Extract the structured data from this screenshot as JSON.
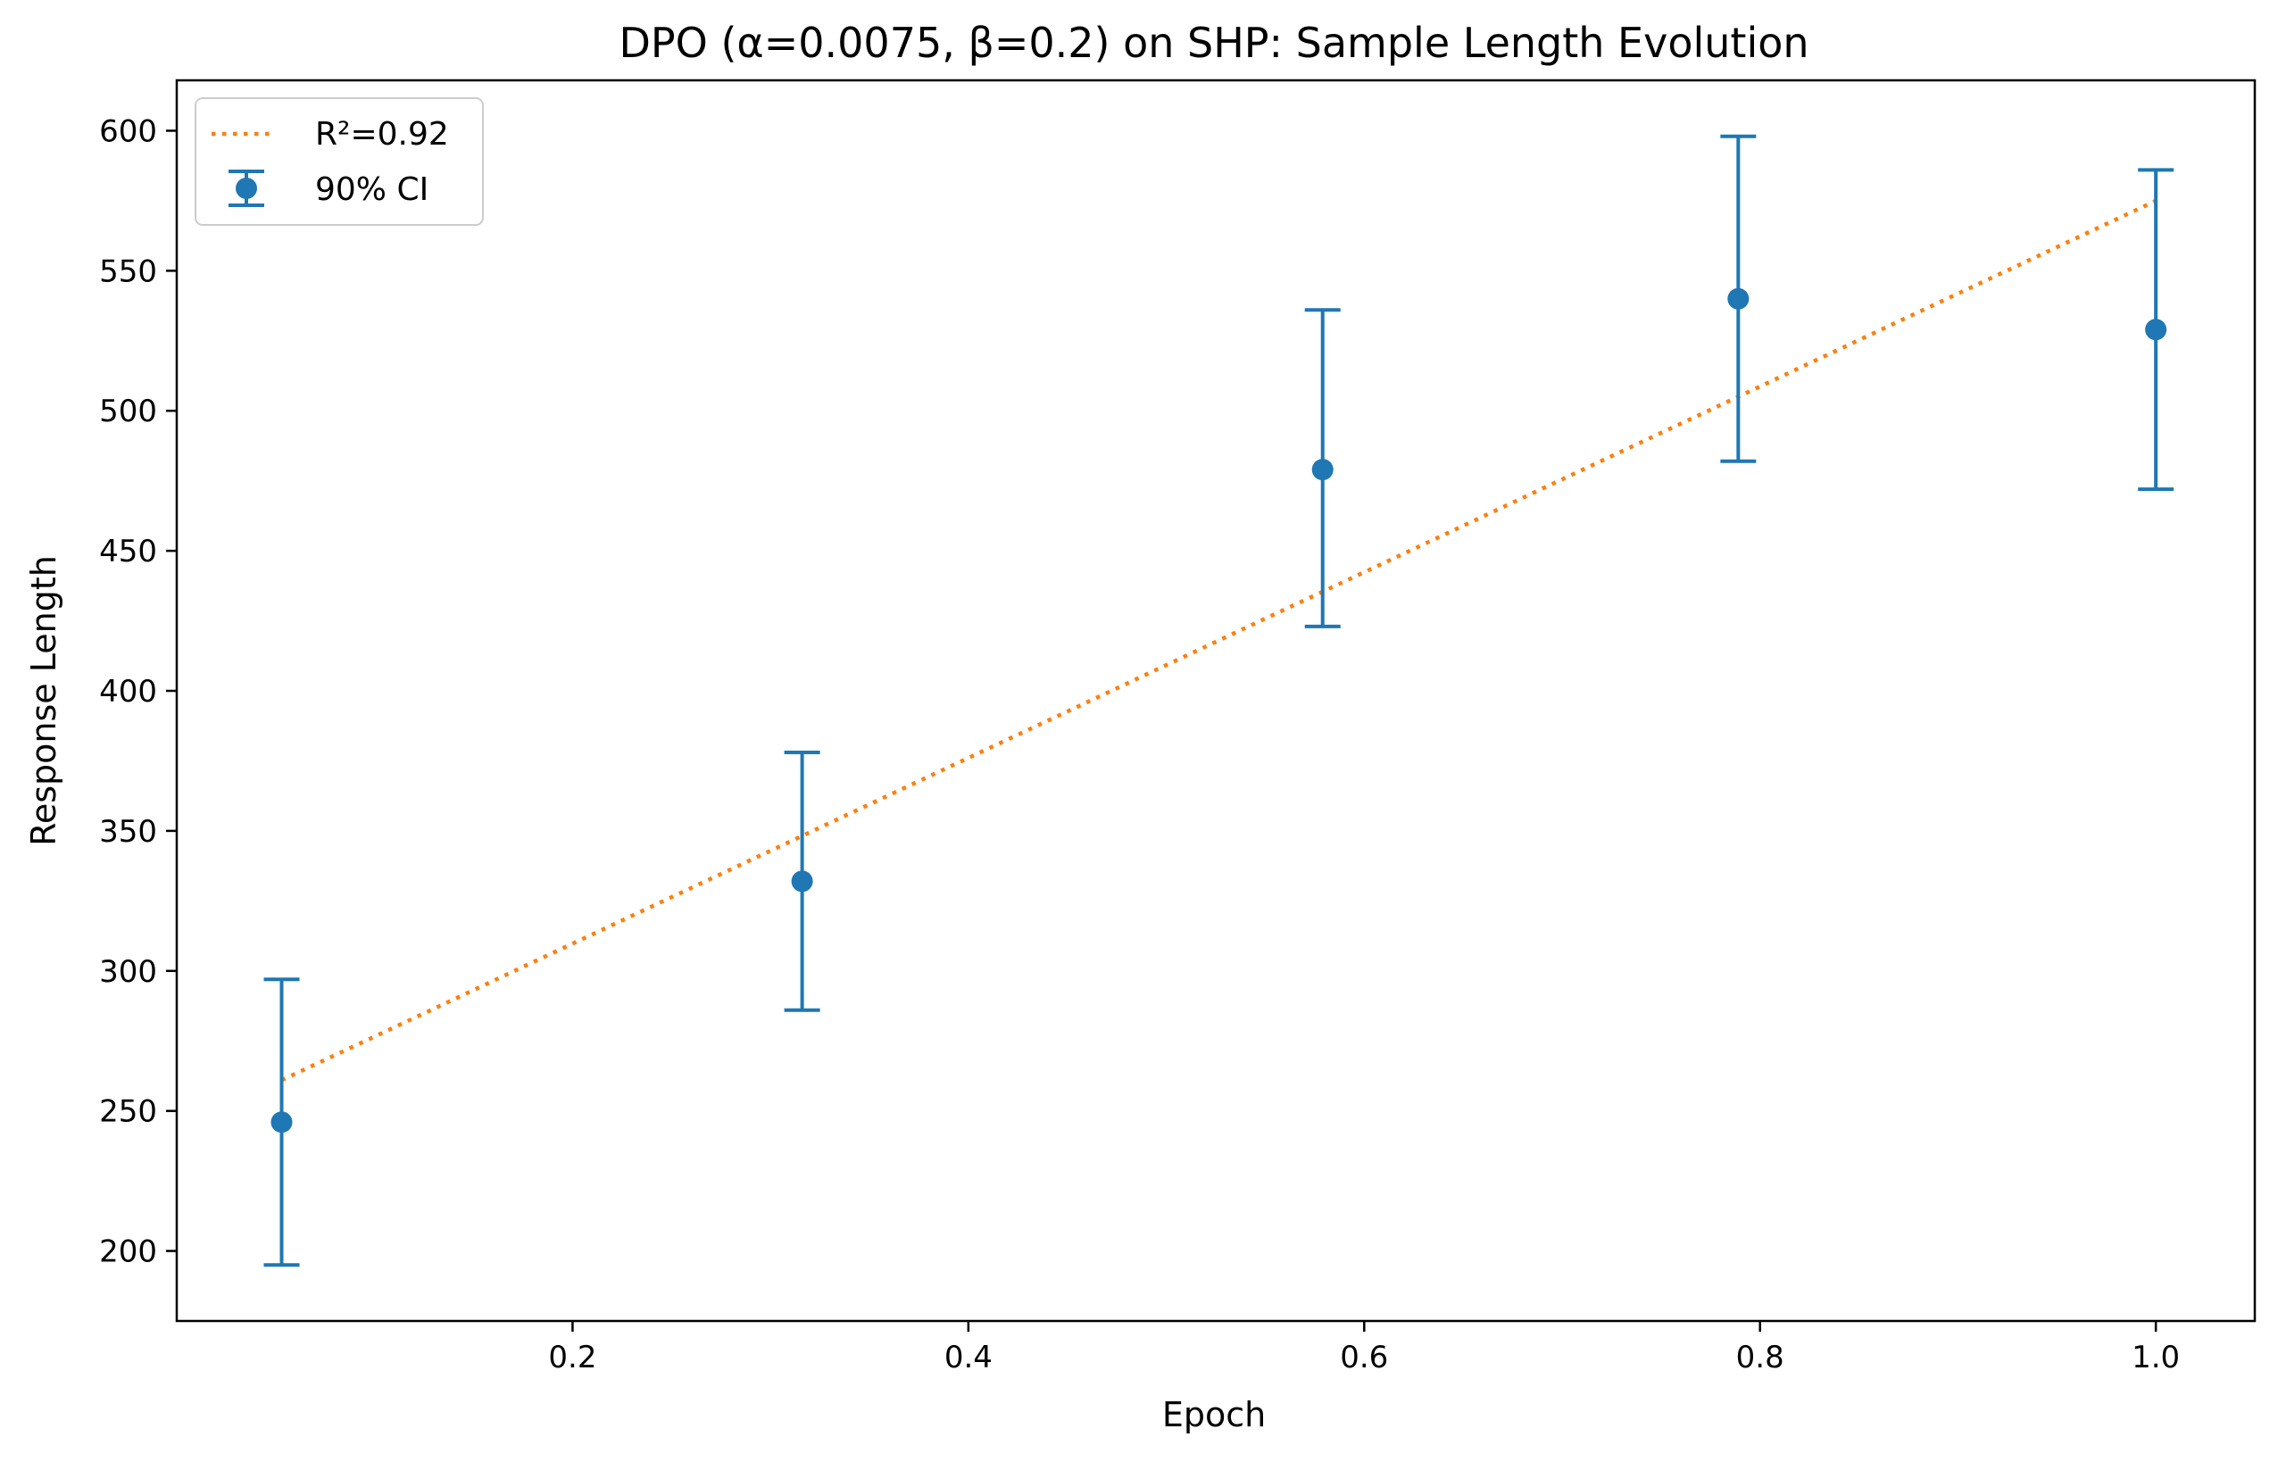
{
  "chart_data": {
    "type": "scatter",
    "title": "DPO (α=0.0075, β=0.2) on SHP: Sample Length Evolution",
    "xlabel": "Epoch",
    "ylabel": "Response Length",
    "xlim": [
      0.0,
      1.05
    ],
    "ylim": [
      175,
      618
    ],
    "xticks": [
      0.2,
      0.4,
      0.6,
      0.8,
      1.0
    ],
    "xtick_labels": [
      "0.2",
      "0.4",
      "0.6",
      "0.8",
      "1.0"
    ],
    "yticks": [
      200,
      250,
      300,
      350,
      400,
      450,
      500,
      550,
      600
    ],
    "ytick_labels": [
      "200",
      "250",
      "300",
      "350",
      "400",
      "450",
      "500",
      "550",
      "600"
    ],
    "grid": false,
    "legend_position": "top-left",
    "series": [
      {
        "name": "90% CI",
        "kind": "errorbar",
        "color": "#1f77b4",
        "x": [
          0.053,
          0.316,
          0.579,
          0.789,
          1.0
        ],
        "y": [
          246,
          332,
          479,
          540,
          529
        ],
        "y_lower": [
          195,
          286,
          423,
          482,
          472
        ],
        "y_upper": [
          297,
          378,
          536,
          598,
          586
        ]
      },
      {
        "name": "R²=0.92",
        "kind": "trend-line",
        "style": "dotted",
        "color": "#ff7f0e",
        "x": [
          0.053,
          1.0
        ],
        "y": [
          261,
          575
        ]
      }
    ]
  }
}
